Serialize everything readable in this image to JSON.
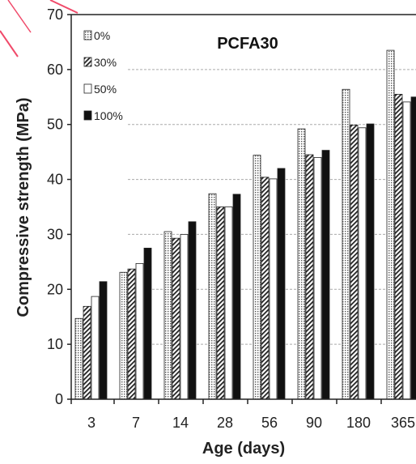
{
  "chart_data": {
    "type": "bar",
    "title": "PCFA30",
    "xlabel": "Age (days)",
    "ylabel": "Compressive strength (MPa)",
    "categories": [
      "3",
      "7",
      "14",
      "28",
      "56",
      "90",
      "180",
      "365"
    ],
    "ylim": [
      0,
      70
    ],
    "yticks": [
      "0",
      "10",
      "20",
      "30",
      "40",
      "50",
      "60",
      "70"
    ],
    "grid": true,
    "legend_position": "top-left",
    "series": [
      {
        "name": "0%",
        "pattern": "dotted",
        "values": [
          14.7,
          23.1,
          30.5,
          37.4,
          44.4,
          49.2,
          56.4,
          63.5
        ]
      },
      {
        "name": "30%",
        "pattern": "diagonal-hatch",
        "values": [
          16.9,
          23.7,
          29.3,
          35.0,
          40.4,
          44.5,
          49.9,
          55.5
        ]
      },
      {
        "name": "50%",
        "pattern": "white",
        "values": [
          18.7,
          24.7,
          30.0,
          35.0,
          40.1,
          44.0,
          49.4,
          54.1
        ]
      },
      {
        "name": "100%",
        "pattern": "black",
        "values": [
          21.4,
          27.5,
          32.3,
          37.3,
          42.0,
          45.3,
          50.1,
          55.0
        ]
      }
    ]
  }
}
